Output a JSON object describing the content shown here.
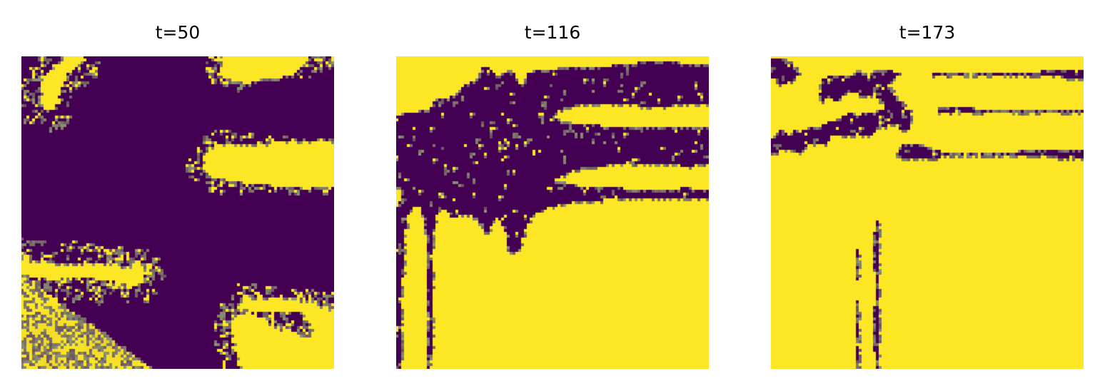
{
  "chart_data": [
    {
      "type": "heatmap",
      "title": "t=50",
      "colormap": "viridis",
      "grid": false,
      "axes_visible": false,
      "low_color": "#440154",
      "high_color": "#fde725",
      "high_fraction": 0.22,
      "features": [
        {
          "kind": "front",
          "edge": "left",
          "from": [
            0.0,
            0.7
          ],
          "to": [
            0.42,
            1.0
          ]
        },
        {
          "kind": "branch",
          "edge": "right",
          "from": [
            1.0,
            0.4
          ],
          "to": [
            0.62,
            0.34
          ]
        },
        {
          "kind": "branch",
          "edge": "right",
          "from": [
            1.0,
            0.78
          ],
          "to": [
            0.72,
            0.78
          ]
        },
        {
          "kind": "branch",
          "edge": "left",
          "from": [
            0.0,
            0.68
          ],
          "to": [
            0.36,
            0.7
          ]
        },
        {
          "kind": "branch",
          "edge": "top",
          "from": [
            0.16,
            0.0
          ],
          "to": [
            0.08,
            0.14
          ]
        },
        {
          "kind": "branch",
          "edge": "top",
          "from": [
            0.74,
            0.0
          ],
          "to": [
            0.7,
            0.04
          ]
        },
        {
          "kind": "branch",
          "edge": "bottom",
          "from": [
            0.85,
            1.0
          ],
          "to": [
            0.72,
            0.86
          ]
        }
      ]
    },
    {
      "type": "heatmap",
      "title": "t=116",
      "colormap": "viridis",
      "grid": false,
      "axes_visible": false,
      "low_color": "#440154",
      "high_color": "#fde725",
      "high_fraction": 0.58,
      "features": [
        {
          "kind": "blob",
          "center": [
            0.4,
            0.34
          ],
          "radius": [
            0.42,
            0.28
          ]
        },
        {
          "kind": "blob",
          "center": [
            0.58,
            0.62
          ],
          "radius": [
            0.18,
            0.16
          ]
        },
        {
          "kind": "blob",
          "center": [
            0.66,
            0.84
          ],
          "radius": [
            0.14,
            0.08
          ]
        },
        {
          "kind": "blob",
          "center": [
            0.85,
            0.1
          ],
          "radius": [
            0.18,
            0.14
          ]
        },
        {
          "kind": "blob",
          "center": [
            0.93,
            0.36
          ],
          "radius": [
            0.07,
            0.1
          ]
        }
      ]
    },
    {
      "type": "heatmap",
      "title": "t=173",
      "colormap": "viridis",
      "grid": false,
      "axes_visible": false,
      "low_color": "#440154",
      "high_color": "#fde725",
      "high_fraction": 0.9,
      "features": [
        {
          "kind": "streak",
          "from": [
            0.0,
            0.29
          ],
          "to": [
            0.4,
            0.19
          ]
        },
        {
          "kind": "streak",
          "from": [
            0.38,
            0.12
          ],
          "to": [
            0.46,
            0.3
          ]
        },
        {
          "kind": "streak",
          "from": [
            0.18,
            0.1
          ],
          "to": [
            0.36,
            0.08
          ]
        },
        {
          "kind": "streak",
          "from": [
            0.55,
            0.14
          ],
          "to": [
            1.0,
            0.12
          ]
        },
        {
          "kind": "streak",
          "from": [
            0.44,
            0.58
          ],
          "to": [
            0.56,
            0.62
          ]
        },
        {
          "kind": "streak",
          "from": [
            0.6,
            0.66
          ],
          "to": [
            0.52,
            0.8
          ]
        },
        {
          "kind": "streak",
          "from": [
            0.0,
            0.04
          ],
          "to": [
            0.06,
            0.06
          ]
        }
      ]
    }
  ]
}
